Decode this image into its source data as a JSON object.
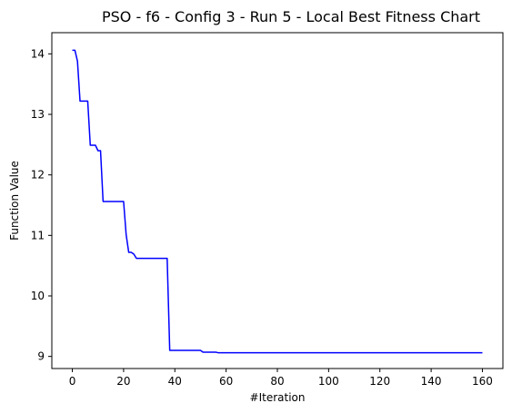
{
  "chart_data": {
    "type": "line",
    "title": "PSO - f6 - Config 3 - Run 5 - Local Best Fitness Chart",
    "xlabel": "#Iteration",
    "ylabel": "Function Value",
    "xlim": [
      -8,
      168
    ],
    "ylim": [
      8.8,
      14.35
    ],
    "x_ticks": [
      0,
      20,
      40,
      60,
      80,
      100,
      120,
      140,
      160
    ],
    "y_ticks": [
      9,
      10,
      11,
      12,
      13,
      14
    ],
    "grid": false,
    "series": [
      {
        "color": "#0000ff",
        "x": [
          0,
          1,
          2,
          3,
          4,
          5,
          6,
          7,
          8,
          9,
          10,
          11,
          12,
          19,
          20,
          21,
          22,
          23,
          24,
          25,
          26,
          37,
          38,
          50,
          51,
          56,
          57,
          160
        ],
        "y": [
          14.06,
          14.06,
          13.88,
          13.22,
          13.22,
          13.22,
          13.22,
          12.49,
          12.49,
          12.49,
          12.4,
          12.4,
          11.56,
          11.56,
          11.56,
          11.01,
          10.72,
          10.72,
          10.69,
          10.62,
          10.62,
          10.62,
          9.1,
          9.1,
          9.07,
          9.07,
          9.06,
          9.06
        ]
      }
    ]
  }
}
